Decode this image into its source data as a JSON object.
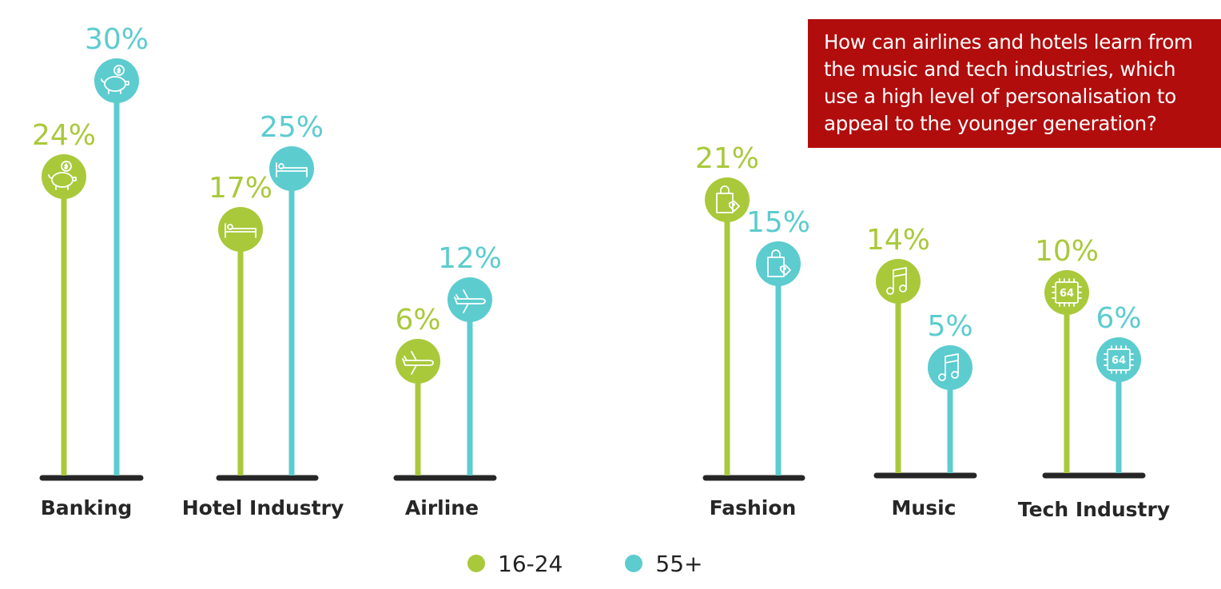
{
  "chart_data": {
    "type": "bar",
    "style": "lollipop",
    "categories": [
      "Banking",
      "Hotel Industry",
      "Airline",
      "Fashion",
      "Music",
      "Tech Industry"
    ],
    "category_icons": [
      "piggy-bank-icon",
      "bed-icon",
      "airplane-icon",
      "shopping-bag-icon",
      "music-note-icon",
      "chip-64-icon"
    ],
    "series": [
      {
        "name": "16-24",
        "values": [
          24,
          17,
          6,
          21,
          14,
          10
        ],
        "labels": [
          "24%",
          "17%",
          "6%",
          "21%",
          "14%",
          "10%"
        ],
        "color": "#a9c93b"
      },
      {
        "name": "55+",
        "values": [
          30,
          25,
          12,
          15,
          5,
          6
        ],
        "labels": [
          "30%",
          "25%",
          "12%",
          "15%",
          "5%",
          "6%"
        ],
        "color": "#5ccccf"
      }
    ],
    "legend_position": "bottom",
    "grid": false
  },
  "callout": {
    "text": "How can airlines and hotels learn from the music and tech industries, which use a high level of personalisation to appeal to the younger generation?",
    "background": "#b10d0d"
  },
  "colors": {
    "base": "#262626",
    "label_text": "#262626"
  }
}
